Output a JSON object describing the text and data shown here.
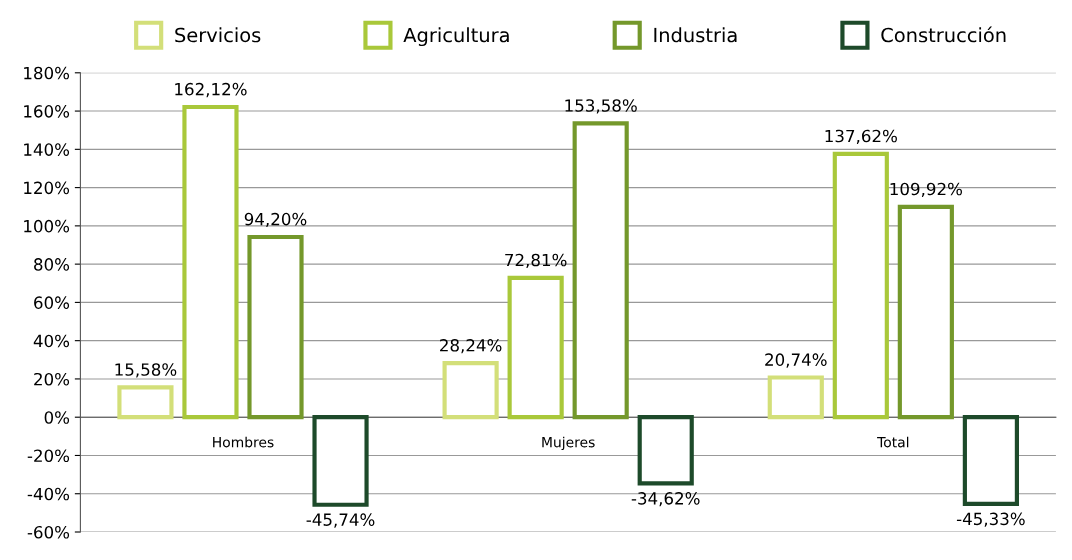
{
  "chart_data": {
    "type": "bar",
    "categories": [
      "Hombres",
      "Mujeres",
      "Total"
    ],
    "series": [
      {
        "name": "Servicios",
        "color": "#d3df79",
        "values": [
          15.58,
          28.24,
          20.74
        ],
        "value_labels": [
          "15,58%",
          "28,24%",
          "20,74%"
        ]
      },
      {
        "name": "Agricultura",
        "color": "#a9c83a",
        "values": [
          162.12,
          72.81,
          137.62
        ],
        "value_labels": [
          "162,12%",
          "72,81%",
          "137,62%"
        ]
      },
      {
        "name": "Industria",
        "color": "#74982b",
        "values": [
          94.2,
          153.58,
          109.92
        ],
        "value_labels": [
          "94,20%",
          "153,58%",
          "109,92%"
        ]
      },
      {
        "name": "Construcción",
        "color": "#1d4a2a",
        "values": [
          -45.74,
          -34.62,
          -45.33
        ],
        "value_labels": [
          "-45,74%",
          "-34,62%",
          "-45,33%"
        ]
      }
    ],
    "ylim": [
      -60,
      180
    ],
    "yticks": [
      {
        "value": -60,
        "label": "-60%"
      },
      {
        "value": -40,
        "label": "-40%"
      },
      {
        "value": -20,
        "label": "-20%"
      },
      {
        "value": 0,
        "label": "0%"
      },
      {
        "value": 20,
        "label": "20%"
      },
      {
        "value": 40,
        "label": "40%"
      },
      {
        "value": 60,
        "label": "60%"
      },
      {
        "value": 80,
        "label": "80%"
      },
      {
        "value": 100,
        "label": "100%"
      },
      {
        "value": 120,
        "label": "120%"
      },
      {
        "value": 140,
        "label": "140%"
      },
      {
        "value": 160,
        "label": "160%"
      },
      {
        "value": 180,
        "label": "180%"
      }
    ],
    "grid": "y",
    "legend": "top"
  }
}
